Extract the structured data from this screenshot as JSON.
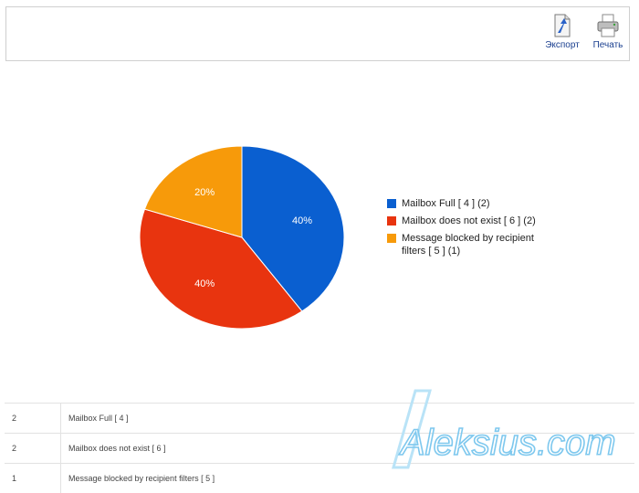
{
  "toolbar": {
    "export_label": "Экспорт",
    "print_label": "Печать",
    "export_icon": "document-export-icon",
    "print_icon": "printer-icon"
  },
  "chart_data": {
    "type": "pie",
    "slices": [
      {
        "label": "Mailbox Full [ 4 ] (2)",
        "value": 2,
        "percent_label": "40%",
        "color": "#0a5fd0"
      },
      {
        "label": "Mailbox does not exist [ 6 ] (2)",
        "value": 2,
        "percent_label": "40%",
        "color": "#e8340f"
      },
      {
        "label": "Message blocked by recipient filters [ 5 ] (1)",
        "value": 1,
        "percent_label": "20%",
        "color": "#f79a0a"
      }
    ],
    "legend_position": "right"
  },
  "table": {
    "rows": [
      {
        "count": "2",
        "reason": "Mailbox Full [ 4 ]"
      },
      {
        "count": "2",
        "reason": "Mailbox does not exist [ 6 ]"
      },
      {
        "count": "1",
        "reason": "Message blocked by recipient filters [ 5 ]"
      }
    ]
  },
  "watermark": {
    "text": "Aleksius.com",
    "color": "#7ec8ee"
  }
}
